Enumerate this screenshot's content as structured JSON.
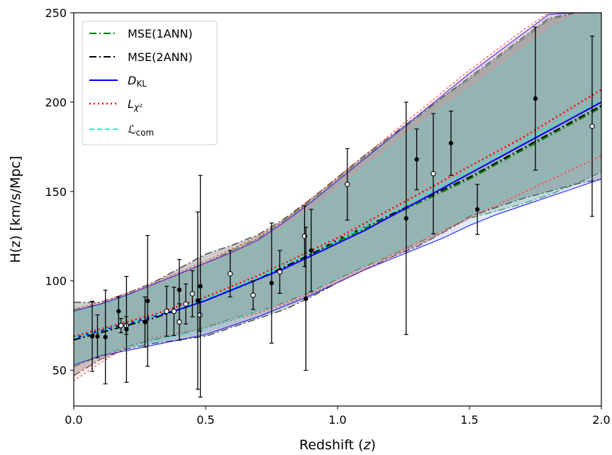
{
  "chart_data": {
    "type": "line",
    "title": "",
    "xlabel": "Redshift",
    "xlabel_var": "z",
    "ylabel": "H(z) [km/s/Mpc]",
    "xlim": [
      0.0,
      2.0
    ],
    "ylim": [
      30,
      250
    ],
    "grid": false,
    "legend_position": "top-left",
    "x_ticks": [
      0.0,
      0.5,
      1.0,
      1.5,
      2.0
    ],
    "x_tick_labels": [
      "0.0",
      "0.5",
      "1.0",
      "1.5",
      "2.0"
    ],
    "y_ticks": [
      50,
      100,
      150,
      200,
      250
    ],
    "y_tick_labels": [
      "50",
      "100",
      "150",
      "200",
      "250"
    ],
    "legend": [
      {
        "label": "MSE(1ANN)",
        "style": "dashdot",
        "color": "#008000"
      },
      {
        "label": "MSE(2ANN)",
        "style": "dashdot",
        "color": "#000000"
      },
      {
        "label_main": "D",
        "label_sub": "KL",
        "style": "solid",
        "color": "#0000ff"
      },
      {
        "label_main": "L",
        "label_sub": "χ²",
        "style": "dotted",
        "color": "#ff0000"
      },
      {
        "label_main": "ℒ",
        "label_sub": "com",
        "style": "dashed",
        "color": "#40e0d0"
      }
    ],
    "x": [
      0.0,
      0.1,
      0.2,
      0.3,
      0.4,
      0.5,
      0.6,
      0.7,
      0.8,
      0.9,
      1.0,
      1.1,
      1.2,
      1.3,
      1.4,
      1.5,
      1.6,
      1.7,
      1.8,
      1.9,
      2.0
    ],
    "series": [
      {
        "name": "MSE(1ANN)",
        "color": "#008000",
        "band_color": "#228b22",
        "values": [
          67,
          71,
          75,
          79,
          84,
          89,
          95,
          101,
          108,
          115,
          122,
          129,
          136,
          143,
          150,
          157,
          165,
          173,
          181,
          189,
          197
        ],
        "band_upper": [
          84,
          87,
          92,
          98,
          104,
          110,
          117,
          124,
          134,
          145,
          157,
          169,
          180,
          191,
          203,
          213,
          224,
          235,
          246,
          250,
          250
        ],
        "band_lower": [
          52,
          58,
          63,
          67,
          70,
          74,
          79,
          83,
          88,
          94,
          101,
          108,
          114,
          121,
          128,
          135,
          139,
          143,
          148,
          154,
          161
        ]
      },
      {
        "name": "MSE(2ANN)",
        "color": "#000000",
        "band_color": "#000000",
        "values": [
          67,
          71,
          75,
          79,
          84,
          89,
          95,
          101,
          108,
          115,
          123,
          130,
          137,
          144,
          151,
          158,
          166,
          174,
          182,
          190,
          198
        ],
        "band_upper": [
          88,
          88,
          93,
          99,
          107,
          115,
          120,
          126,
          135,
          146,
          158,
          170,
          181,
          192,
          203,
          214,
          225,
          236,
          247,
          250,
          250
        ],
        "band_lower": [
          47,
          56,
          62,
          65,
          67,
          69,
          74,
          79,
          84,
          91,
          99,
          106,
          113,
          119,
          127,
          136,
          141,
          146,
          150,
          154,
          157
        ]
      },
      {
        "name": "D_KL",
        "color": "#0000ff",
        "band_color": "#6495ed",
        "values": [
          68,
          72,
          76,
          80,
          84,
          89,
          95,
          101,
          107,
          114,
          121,
          128,
          136,
          144,
          152,
          160,
          168,
          176,
          184,
          192,
          200
        ],
        "band_upper": [
          83,
          87,
          92,
          98,
          104,
          110,
          116,
          123,
          133,
          144,
          156,
          168,
          180,
          192,
          204,
          216,
          227,
          238,
          249,
          250,
          250
        ],
        "band_lower": [
          53,
          58,
          61,
          64,
          67,
          70,
          75,
          80,
          86,
          92,
          99,
          106,
          112,
          118,
          124,
          131,
          137,
          142,
          147,
          152,
          157
        ]
      },
      {
        "name": "L_chi2",
        "color": "#ff0000",
        "band_color": "#f08080",
        "values": [
          69,
          73,
          77,
          81,
          86,
          91,
          97,
          103,
          110,
          117,
          124,
          132,
          140,
          148,
          156,
          164,
          172,
          180,
          189,
          198,
          207
        ],
        "band_upper": [
          84,
          88,
          93,
          99,
          105,
          111,
          118,
          125,
          134,
          146,
          158,
          170,
          182,
          194,
          206,
          218,
          229,
          240,
          250,
          250,
          250
        ],
        "band_lower": [
          44,
          54,
          63,
          68,
          71,
          74,
          78,
          82,
          87,
          93,
          99,
          106,
          113,
          120,
          127,
          135,
          142,
          149,
          156,
          163,
          170
        ]
      },
      {
        "name": "L_com",
        "color": "#40e0d0",
        "band_color": "#40e0d0",
        "values": [
          68,
          72,
          76,
          80,
          85,
          90,
          96,
          102,
          109,
          116,
          123,
          130,
          138,
          146,
          154,
          162,
          170,
          178,
          186,
          194,
          202
        ],
        "band_upper": [
          82,
          86,
          91,
          96,
          102,
          108,
          114,
          121,
          130,
          140,
          151,
          163,
          174,
          186,
          197,
          207,
          218,
          229,
          240,
          248,
          250
        ],
        "band_lower": [
          54,
          59,
          63,
          66,
          69,
          73,
          78,
          83,
          89,
          95,
          102,
          109,
          116,
          123,
          130,
          137,
          144,
          151,
          158,
          165,
          172
        ]
      }
    ],
    "observations": {
      "name": "H(z) data",
      "points": [
        {
          "z": 0.07,
          "H": 69.0,
          "err": 19.6,
          "open": false
        },
        {
          "z": 0.09,
          "H": 69.0,
          "err": 12.0,
          "open": false
        },
        {
          "z": 0.12,
          "H": 68.6,
          "err": 26.2,
          "open": false
        },
        {
          "z": 0.17,
          "H": 83.0,
          "err": 8.0,
          "open": false
        },
        {
          "z": 0.179,
          "H": 75.0,
          "err": 4.0,
          "open": true
        },
        {
          "z": 0.199,
          "H": 75.0,
          "err": 5.0,
          "open": true
        },
        {
          "z": 0.2,
          "H": 72.9,
          "err": 29.6,
          "open": false
        },
        {
          "z": 0.27,
          "H": 77.0,
          "err": 14.0,
          "open": false
        },
        {
          "z": 0.28,
          "H": 88.8,
          "err": 36.6,
          "open": false
        },
        {
          "z": 0.352,
          "H": 83.0,
          "err": 14.0,
          "open": true
        },
        {
          "z": 0.38,
          "H": 83.0,
          "err": 13.5,
          "open": true
        },
        {
          "z": 0.4,
          "H": 95.0,
          "err": 17.0,
          "open": false
        },
        {
          "z": 0.4004,
          "H": 77.0,
          "err": 10.2,
          "open": true
        },
        {
          "z": 0.4247,
          "H": 87.1,
          "err": 11.2,
          "open": true
        },
        {
          "z": 0.4497,
          "H": 92.8,
          "err": 12.9,
          "open": true
        },
        {
          "z": 0.47,
          "H": 89.0,
          "err": 49.6,
          "open": false
        },
        {
          "z": 0.4783,
          "H": 80.9,
          "err": 9.0,
          "open": true
        },
        {
          "z": 0.48,
          "H": 97.0,
          "err": 62.0,
          "open": false
        },
        {
          "z": 0.593,
          "H": 104.0,
          "err": 13.0,
          "open": true
        },
        {
          "z": 0.68,
          "H": 92.0,
          "err": 8.0,
          "open": true
        },
        {
          "z": 0.75,
          "H": 98.8,
          "err": 33.6,
          "open": false
        },
        {
          "z": 0.781,
          "H": 105.0,
          "err": 12.0,
          "open": true
        },
        {
          "z": 0.875,
          "H": 125.0,
          "err": 17.0,
          "open": true
        },
        {
          "z": 0.88,
          "H": 90.0,
          "err": 40.0,
          "open": false
        },
        {
          "z": 0.9,
          "H": 117.0,
          "err": 23.0,
          "open": false
        },
        {
          "z": 1.037,
          "H": 154.0,
          "err": 20.0,
          "open": true
        },
        {
          "z": 1.3,
          "H": 168.0,
          "err": 17.0,
          "open": false
        },
        {
          "z": 1.363,
          "H": 160.0,
          "err": 33.6,
          "open": true
        },
        {
          "z": 1.43,
          "H": 177.0,
          "err": 18.0,
          "open": false
        },
        {
          "z": 1.53,
          "H": 140.0,
          "err": 14.0,
          "open": false
        },
        {
          "z": 1.75,
          "H": 202.0,
          "err": 40.0,
          "open": false
        },
        {
          "z": 1.965,
          "H": 186.5,
          "err": 50.4,
          "open": true
        },
        {
          "z": 1.26,
          "H": 135.0,
          "err": 65.0,
          "open": false
        }
      ]
    }
  }
}
